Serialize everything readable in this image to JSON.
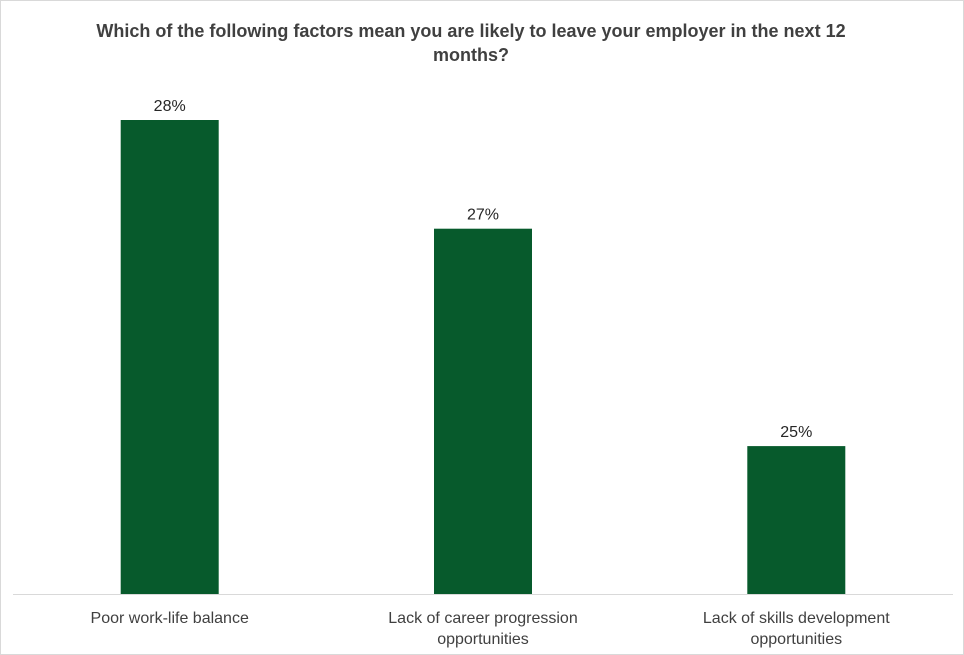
{
  "chart_data": {
    "type": "bar",
    "title": "Which of the following factors mean you are likely to leave your employer in the next 12 months?",
    "categories": [
      "Poor work-life balance",
      "Lack of career progression opportunities",
      "Lack of skills development opportunities"
    ],
    "category_lines": [
      [
        "Poor work-life balance"
      ],
      [
        "Lack of career progression",
        "opportunities"
      ],
      [
        "Lack of skills development",
        "opportunities"
      ]
    ],
    "values": [
      0.28,
      0.27,
      0.25
    ],
    "data_labels": [
      "28%",
      "27%",
      "25%"
    ],
    "ylim": [
      0.2364,
      0.28
    ],
    "grid": false,
    "bar_color": "#075a2c",
    "axis_color": "#d9d9d9"
  }
}
